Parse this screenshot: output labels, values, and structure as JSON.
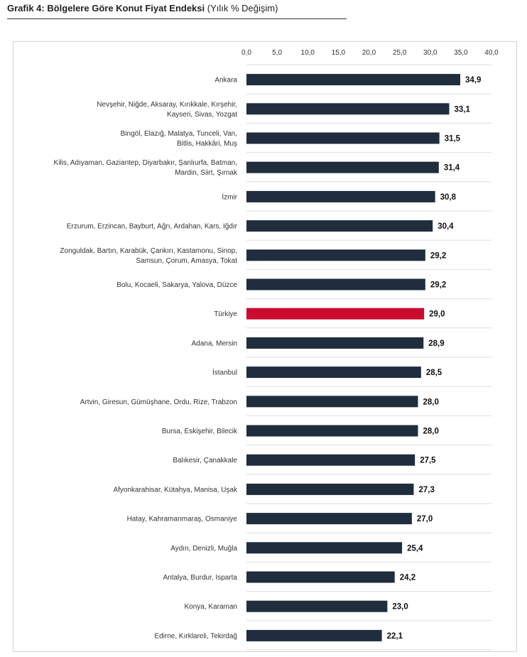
{
  "title": {
    "bold": "Grafik 4: Bölgelere Göre Konut Fiyat Endeksi",
    "normal": "(Yılık % Değişim)"
  },
  "colors": {
    "bar": "#1f2d3d",
    "highlight": "#cc0a2f",
    "grid": "#dedede"
  },
  "chart_data": {
    "type": "bar",
    "orientation": "horizontal",
    "title": "Grafik 4: Bölgelere Göre Konut Fiyat Endeksi (Yılık % Değişim)",
    "xlim": [
      0,
      40
    ],
    "ticks": [
      "0,0",
      "5,0",
      "10,0",
      "15,0",
      "20,0",
      "25,0",
      "30,0",
      "35,0",
      "40,0"
    ],
    "tick_values": [
      0,
      5,
      10,
      15,
      20,
      25,
      30,
      35,
      40
    ],
    "highlight_category": "Türkiye",
    "categories": [
      [
        "Ankara"
      ],
      [
        "Nevşehir, Niğde, Aksaray, Kırıkkale, Kırşehir,",
        "Kayseri, Sivas, Yozgat"
      ],
      [
        "Bingöl, Elazığ, Malatya, Tunceli, Van,",
        "Bitlis, Hakkâri, Muş"
      ],
      [
        "Kilis, Adıyaman, Gaziantep, Diyarbakır, Şanlıurfa, Batman,",
        "Mardin, Siirt, Şırnak"
      ],
      [
        "İzmir"
      ],
      [
        "Erzurum, Erzincan, Bayburt, Ağrı, Ardahan, Kars, Iğdır"
      ],
      [
        "Zonguldak, Bartın, Karabük, Çankırı, Kastamonu, Sinop,",
        "Samsun, Çorum, Amasya, Tokat"
      ],
      [
        "Bolu, Kocaeli, Sakarya, Yalova, Düzce"
      ],
      [
        "Türkiye"
      ],
      [
        "Adana, Mersin"
      ],
      [
        "İstanbul"
      ],
      [
        "Artvin, Giresun, Gümüşhane, Ordu, Rize, Trabzon"
      ],
      [
        "Bursa, Eskişehir, Bilecik"
      ],
      [
        "Balıkesir, Çanakkale"
      ],
      [
        "Afyonkarahisar, Kütahya, Manisa, Uşak"
      ],
      [
        "Hatay, Kahramanmaraş, Osmaniye"
      ],
      [
        "Aydın, Denizli, Muğla"
      ],
      [
        "Antalya, Burdur, Isparta"
      ],
      [
        "Konya, Karaman"
      ],
      [
        "Edirne, Kırklareli, Tekirdağ"
      ]
    ],
    "values": [
      34.9,
      33.1,
      31.5,
      31.4,
      30.8,
      30.4,
      29.2,
      29.2,
      29.0,
      28.9,
      28.5,
      28.0,
      28.0,
      27.5,
      27.3,
      27.0,
      25.4,
      24.2,
      23.0,
      22.1
    ],
    "value_labels": [
      "34,9",
      "33,1",
      "31,5",
      "31,4",
      "30,8",
      "30,4",
      "29,2",
      "29,2",
      "29,0",
      "28,9",
      "28,5",
      "28,0",
      "28,0",
      "27,5",
      "27,3",
      "27,0",
      "25,4",
      "24,2",
      "23,0",
      "22,1"
    ]
  }
}
